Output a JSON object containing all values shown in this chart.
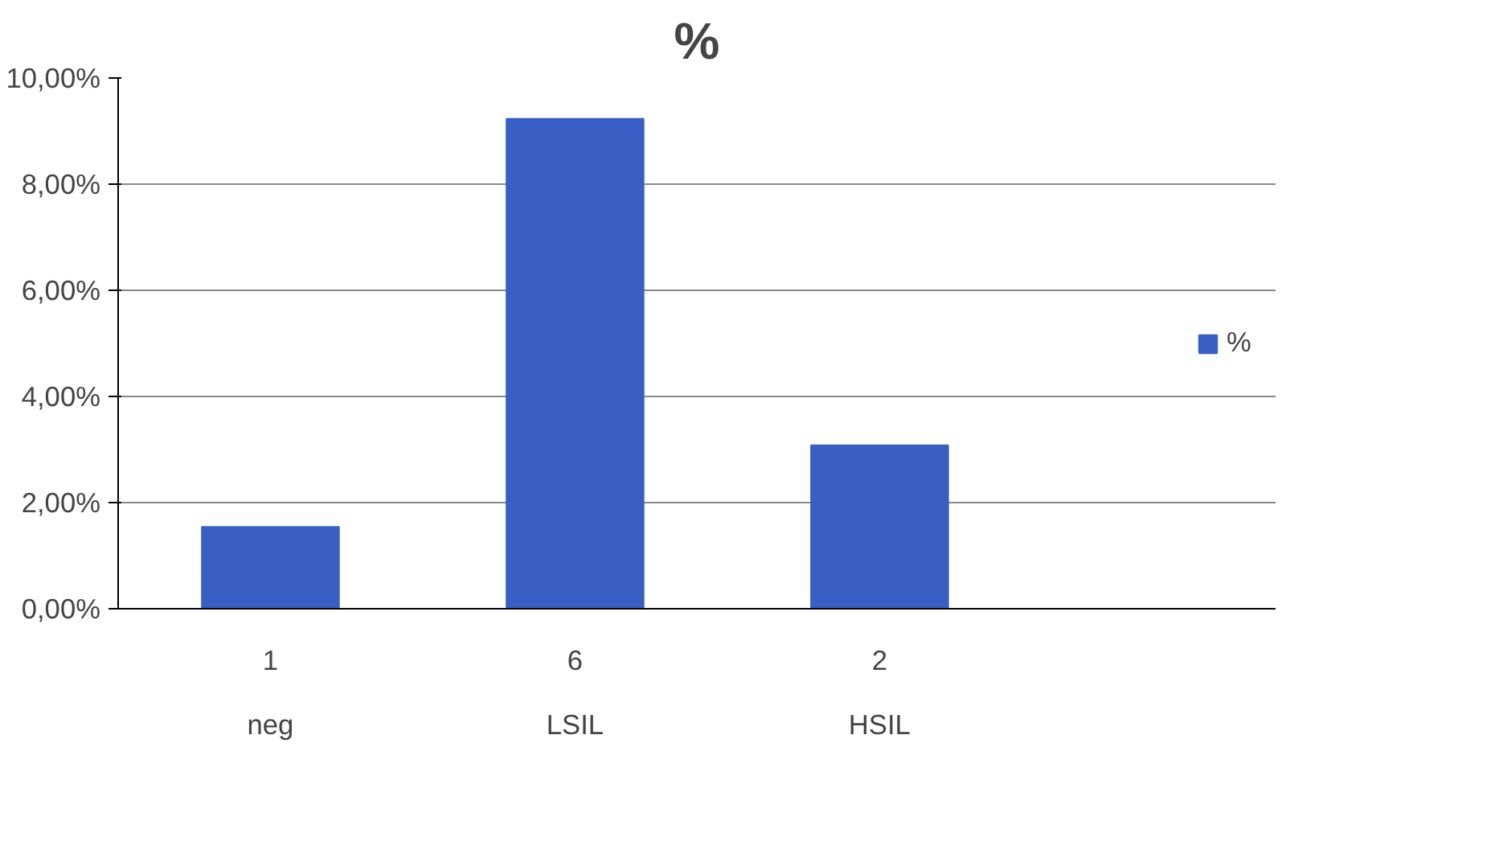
{
  "chart_data": {
    "type": "bar",
    "title": "%",
    "categories": [
      "neg",
      "LSIL",
      "HSIL"
    ],
    "series": [
      {
        "name": "%",
        "color": "#3a5fc4",
        "values": [
          1.54,
          9.23,
          3.08
        ]
      }
    ],
    "ylim": [
      0,
      10
    ],
    "yticks": [
      {
        "value": 0,
        "label": "0,00%"
      },
      {
        "value": 2,
        "label": "2,00%"
      },
      {
        "value": 4,
        "label": "4,00%"
      },
      {
        "value": 6,
        "label": "6,00%"
      },
      {
        "value": 8,
        "label": "8,00%"
      },
      {
        "value": 10,
        "label": "10,00%"
      }
    ],
    "annotations": [
      "1",
      "6",
      "2"
    ],
    "grid": "y",
    "legend": "right"
  }
}
